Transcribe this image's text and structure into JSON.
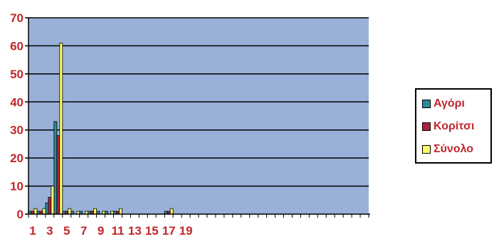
{
  "chart_data": {
    "type": "bar",
    "title": "",
    "xlabel": "",
    "ylabel": "",
    "categories": [
      "1",
      "2",
      "3",
      "4",
      "5",
      "6",
      "7",
      "8",
      "9",
      "10",
      "11",
      "12",
      "13",
      "14",
      "15",
      "16",
      "17",
      "18",
      "19",
      "20",
      "21",
      "22",
      "23",
      "24",
      "25",
      "26",
      "27",
      "28",
      "29",
      "30",
      "31",
      "32",
      "33",
      "34",
      "35",
      "36",
      "37",
      "38",
      "39",
      "40"
    ],
    "x_tick_labels": [
      "1",
      "3",
      "5",
      "7",
      "9",
      "11",
      "13",
      "15",
      "17",
      "19"
    ],
    "ylim": [
      0,
      70
    ],
    "y_ticks": [
      0,
      10,
      20,
      30,
      40,
      50,
      60,
      70
    ],
    "grid": true,
    "legend_position": "right",
    "series": [
      {
        "name": "Αγόρι",
        "color": "#2e8b9a",
        "values": [
          1,
          1,
          4,
          33,
          1,
          1,
          1,
          1,
          1,
          1,
          1,
          0,
          0,
          0,
          0,
          0,
          1,
          0,
          0,
          0,
          0,
          0,
          0,
          0,
          0,
          0,
          0,
          0,
          0,
          0,
          0,
          0,
          0,
          0,
          0,
          0,
          0,
          0,
          0,
          0
        ]
      },
      {
        "name": "Κορίτσι",
        "color": "#b0213b",
        "values": [
          1,
          1,
          6,
          28,
          1,
          0,
          0,
          1,
          0,
          0,
          1,
          0,
          0,
          0,
          0,
          0,
          1,
          0,
          0,
          0,
          0,
          0,
          0,
          0,
          0,
          0,
          0,
          0,
          0,
          0,
          0,
          0,
          0,
          0,
          0,
          0,
          0,
          0,
          0,
          0
        ]
      },
      {
        "name": "Σύνολο",
        "color": "#ffff66",
        "values": [
          2,
          2,
          10,
          61,
          2,
          1,
          1,
          2,
          1,
          1,
          2,
          0,
          0,
          0,
          0,
          0,
          2,
          0,
          0,
          0,
          0,
          0,
          0,
          0,
          0,
          0,
          0,
          0,
          0,
          0,
          0,
          0,
          0,
          0,
          0,
          0,
          0,
          0,
          0,
          0
        ]
      }
    ]
  }
}
